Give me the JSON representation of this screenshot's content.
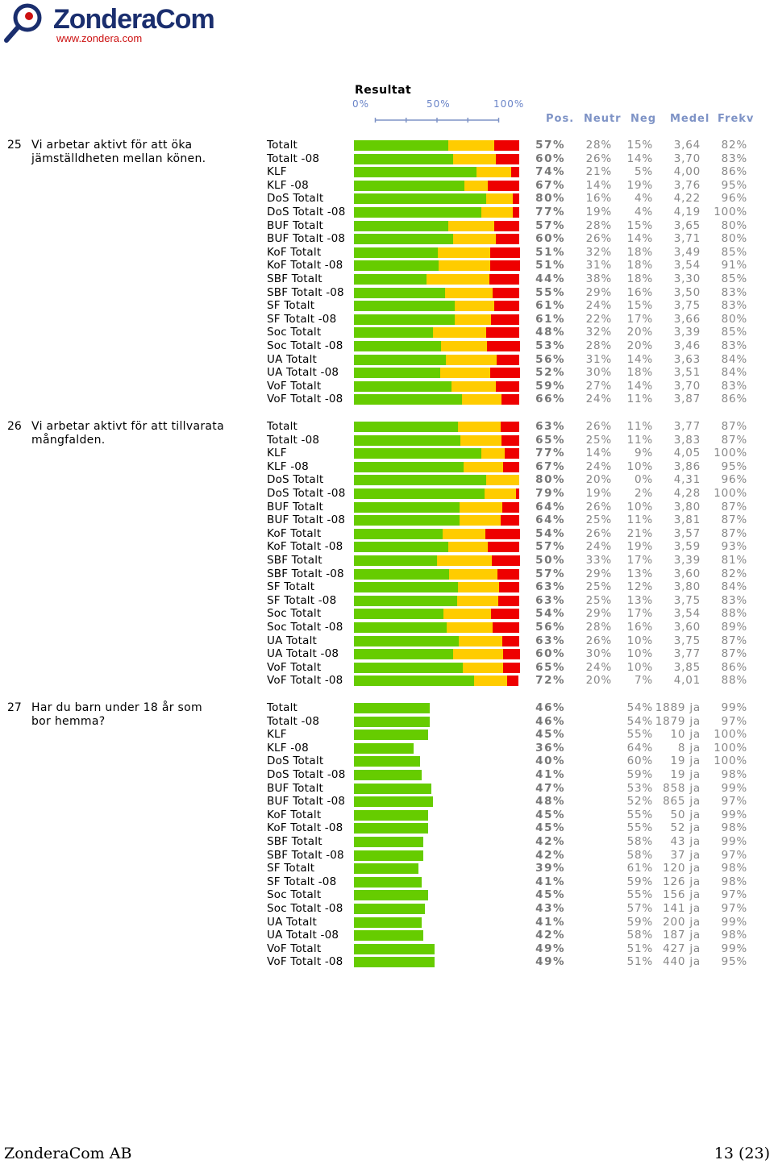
{
  "logo": {
    "brand": "ZonderaCom",
    "url": "www.zondera.com"
  },
  "scale": {
    "title": "Resultat",
    "ticks": [
      "0%",
      "50%",
      "100%"
    ]
  },
  "columns": {
    "pos": "Pos.",
    "neutr": "Neutr",
    "neg": "Neg",
    "medel": "Medel",
    "frekv": "Frekv"
  },
  "colors": {
    "positive": "#66cc00",
    "neutral": "#ffcc00",
    "negative": "#ee0000",
    "header": "#7e93c6"
  },
  "questions": [
    {
      "num": "25",
      "text": "Vi arbetar aktivt för att öka jämställdheten mellan könen.",
      "rows": [
        {
          "label": "Totalt",
          "pos": "57%",
          "neutr": "28%",
          "neg": "15%",
          "medel": "3,64",
          "frekv": "82%"
        },
        {
          "label": "Totalt -08",
          "pos": "60%",
          "neutr": "26%",
          "neg": "14%",
          "medel": "3,70",
          "frekv": "83%"
        },
        {
          "label": "KLF",
          "pos": "74%",
          "neutr": "21%",
          "neg": "5%",
          "medel": "4,00",
          "frekv": "86%"
        },
        {
          "label": "KLF -08",
          "pos": "67%",
          "neutr": "14%",
          "neg": "19%",
          "medel": "3,76",
          "frekv": "95%"
        },
        {
          "label": "DoS Totalt",
          "pos": "80%",
          "neutr": "16%",
          "neg": "4%",
          "medel": "4,22",
          "frekv": "96%"
        },
        {
          "label": "DoS Totalt -08",
          "pos": "77%",
          "neutr": "19%",
          "neg": "4%",
          "medel": "4,19",
          "frekv": "100%"
        },
        {
          "label": "BUF Totalt",
          "pos": "57%",
          "neutr": "28%",
          "neg": "15%",
          "medel": "3,65",
          "frekv": "80%"
        },
        {
          "label": "BUF Totalt -08",
          "pos": "60%",
          "neutr": "26%",
          "neg": "14%",
          "medel": "3,71",
          "frekv": "80%"
        },
        {
          "label": "KoF Totalt",
          "pos": "51%",
          "neutr": "32%",
          "neg": "18%",
          "medel": "3,49",
          "frekv": "85%"
        },
        {
          "label": "KoF Totalt -08",
          "pos": "51%",
          "neutr": "31%",
          "neg": "18%",
          "medel": "3,54",
          "frekv": "91%"
        },
        {
          "label": "SBF Totalt",
          "pos": "44%",
          "neutr": "38%",
          "neg": "18%",
          "medel": "3,30",
          "frekv": "85%"
        },
        {
          "label": "SBF Totalt -08",
          "pos": "55%",
          "neutr": "29%",
          "neg": "16%",
          "medel": "3,50",
          "frekv": "83%"
        },
        {
          "label": "SF Totalt",
          "pos": "61%",
          "neutr": "24%",
          "neg": "15%",
          "medel": "3,75",
          "frekv": "83%"
        },
        {
          "label": "SF Totalt -08",
          "pos": "61%",
          "neutr": "22%",
          "neg": "17%",
          "medel": "3,66",
          "frekv": "80%"
        },
        {
          "label": "Soc Totalt",
          "pos": "48%",
          "neutr": "32%",
          "neg": "20%",
          "medel": "3,39",
          "frekv": "85%"
        },
        {
          "label": "Soc Totalt -08",
          "pos": "53%",
          "neutr": "28%",
          "neg": "20%",
          "medel": "3,46",
          "frekv": "83%"
        },
        {
          "label": "UA Totalt",
          "pos": "56%",
          "neutr": "31%",
          "neg": "14%",
          "medel": "3,63",
          "frekv": "84%"
        },
        {
          "label": "UA Totalt -08",
          "pos": "52%",
          "neutr": "30%",
          "neg": "18%",
          "medel": "3,51",
          "frekv": "84%"
        },
        {
          "label": "VoF Totalt",
          "pos": "59%",
          "neutr": "27%",
          "neg": "14%",
          "medel": "3,70",
          "frekv": "83%"
        },
        {
          "label": "VoF Totalt -08",
          "pos": "66%",
          "neutr": "24%",
          "neg": "11%",
          "medel": "3,87",
          "frekv": "86%"
        }
      ]
    },
    {
      "num": "26",
      "text": "Vi arbetar aktivt för att tillvarata mångfalden.",
      "rows": [
        {
          "label": "Totalt",
          "pos": "63%",
          "neutr": "26%",
          "neg": "11%",
          "medel": "3,77",
          "frekv": "87%"
        },
        {
          "label": "Totalt -08",
          "pos": "65%",
          "neutr": "25%",
          "neg": "11%",
          "medel": "3,83",
          "frekv": "87%"
        },
        {
          "label": "KLF",
          "pos": "77%",
          "neutr": "14%",
          "neg": "9%",
          "medel": "4,05",
          "frekv": "100%"
        },
        {
          "label": "KLF -08",
          "pos": "67%",
          "neutr": "24%",
          "neg": "10%",
          "medel": "3,86",
          "frekv": "95%"
        },
        {
          "label": "DoS Totalt",
          "pos": "80%",
          "neutr": "20%",
          "neg": "0%",
          "medel": "4,31",
          "frekv": "96%"
        },
        {
          "label": "DoS Totalt -08",
          "pos": "79%",
          "neutr": "19%",
          "neg": "2%",
          "medel": "4,28",
          "frekv": "100%"
        },
        {
          "label": "BUF Totalt",
          "pos": "64%",
          "neutr": "26%",
          "neg": "10%",
          "medel": "3,80",
          "frekv": "87%"
        },
        {
          "label": "BUF Totalt -08",
          "pos": "64%",
          "neutr": "25%",
          "neg": "11%",
          "medel": "3,81",
          "frekv": "87%"
        },
        {
          "label": "KoF Totalt",
          "pos": "54%",
          "neutr": "26%",
          "neg": "21%",
          "medel": "3,57",
          "frekv": "87%"
        },
        {
          "label": "KoF Totalt -08",
          "pos": "57%",
          "neutr": "24%",
          "neg": "19%",
          "medel": "3,59",
          "frekv": "93%"
        },
        {
          "label": "SBF Totalt",
          "pos": "50%",
          "neutr": "33%",
          "neg": "17%",
          "medel": "3,39",
          "frekv": "81%"
        },
        {
          "label": "SBF Totalt -08",
          "pos": "57%",
          "neutr": "29%",
          "neg": "13%",
          "medel": "3,60",
          "frekv": "82%"
        },
        {
          "label": "SF Totalt",
          "pos": "63%",
          "neutr": "25%",
          "neg": "12%",
          "medel": "3,80",
          "frekv": "84%"
        },
        {
          "label": "SF Totalt -08",
          "pos": "63%",
          "neutr": "25%",
          "neg": "13%",
          "medel": "3,75",
          "frekv": "83%"
        },
        {
          "label": "Soc Totalt",
          "pos": "54%",
          "neutr": "29%",
          "neg": "17%",
          "medel": "3,54",
          "frekv": "88%"
        },
        {
          "label": "Soc Totalt -08",
          "pos": "56%",
          "neutr": "28%",
          "neg": "16%",
          "medel": "3,60",
          "frekv": "89%"
        },
        {
          "label": "UA Totalt",
          "pos": "63%",
          "neutr": "26%",
          "neg": "10%",
          "medel": "3,75",
          "frekv": "87%"
        },
        {
          "label": "UA Totalt -08",
          "pos": "60%",
          "neutr": "30%",
          "neg": "10%",
          "medel": "3,77",
          "frekv": "87%"
        },
        {
          "label": "VoF Totalt",
          "pos": "65%",
          "neutr": "24%",
          "neg": "10%",
          "medel": "3,85",
          "frekv": "86%"
        },
        {
          "label": "VoF Totalt -08",
          "pos": "72%",
          "neutr": "20%",
          "neg": "7%",
          "medel": "4,01",
          "frekv": "88%"
        }
      ]
    },
    {
      "num": "27",
      "text": "Har du barn under 18 år som bor hemma?",
      "rows": [
        {
          "label": "Totalt",
          "pos": "46%",
          "neutr": "",
          "neg": "54%",
          "medel": "1889 ja",
          "frekv": "99%"
        },
        {
          "label": "Totalt -08",
          "pos": "46%",
          "neutr": "",
          "neg": "54%",
          "medel": "1879 ja",
          "frekv": "97%"
        },
        {
          "label": "KLF",
          "pos": "45%",
          "neutr": "",
          "neg": "55%",
          "medel": "10 ja",
          "frekv": "100%"
        },
        {
          "label": "KLF -08",
          "pos": "36%",
          "neutr": "",
          "neg": "64%",
          "medel": "8 ja",
          "frekv": "100%"
        },
        {
          "label": "DoS Totalt",
          "pos": "40%",
          "neutr": "",
          "neg": "60%",
          "medel": "19 ja",
          "frekv": "100%"
        },
        {
          "label": "DoS Totalt -08",
          "pos": "41%",
          "neutr": "",
          "neg": "59%",
          "medel": "19 ja",
          "frekv": "98%"
        },
        {
          "label": "BUF Totalt",
          "pos": "47%",
          "neutr": "",
          "neg": "53%",
          "medel": "858 ja",
          "frekv": "99%"
        },
        {
          "label": "BUF Totalt -08",
          "pos": "48%",
          "neutr": "",
          "neg": "52%",
          "medel": "865 ja",
          "frekv": "97%"
        },
        {
          "label": "KoF Totalt",
          "pos": "45%",
          "neutr": "",
          "neg": "55%",
          "medel": "50 ja",
          "frekv": "99%"
        },
        {
          "label": "KoF Totalt -08",
          "pos": "45%",
          "neutr": "",
          "neg": "55%",
          "medel": "52 ja",
          "frekv": "98%"
        },
        {
          "label": "SBF Totalt",
          "pos": "42%",
          "neutr": "",
          "neg": "58%",
          "medel": "43 ja",
          "frekv": "99%"
        },
        {
          "label": "SBF Totalt -08",
          "pos": "42%",
          "neutr": "",
          "neg": "58%",
          "medel": "37 ja",
          "frekv": "97%"
        },
        {
          "label": "SF Totalt",
          "pos": "39%",
          "neutr": "",
          "neg": "61%",
          "medel": "120 ja",
          "frekv": "98%"
        },
        {
          "label": "SF Totalt -08",
          "pos": "41%",
          "neutr": "",
          "neg": "59%",
          "medel": "126 ja",
          "frekv": "98%"
        },
        {
          "label": "Soc Totalt",
          "pos": "45%",
          "neutr": "",
          "neg": "55%",
          "medel": "156 ja",
          "frekv": "97%"
        },
        {
          "label": "Soc Totalt -08",
          "pos": "43%",
          "neutr": "",
          "neg": "57%",
          "medel": "141 ja",
          "frekv": "97%"
        },
        {
          "label": "UA Totalt",
          "pos": "41%",
          "neutr": "",
          "neg": "59%",
          "medel": "200 ja",
          "frekv": "99%"
        },
        {
          "label": "UA Totalt -08",
          "pos": "42%",
          "neutr": "",
          "neg": "58%",
          "medel": "187 ja",
          "frekv": "98%"
        },
        {
          "label": "VoF Totalt",
          "pos": "49%",
          "neutr": "",
          "neg": "51%",
          "medel": "427 ja",
          "frekv": "99%"
        },
        {
          "label": "VoF Totalt -08",
          "pos": "49%",
          "neutr": "",
          "neg": "51%",
          "medel": "440 ja",
          "frekv": "95%"
        }
      ]
    }
  ],
  "footer": {
    "company": "ZonderaCom AB",
    "page": "13 (23)"
  }
}
